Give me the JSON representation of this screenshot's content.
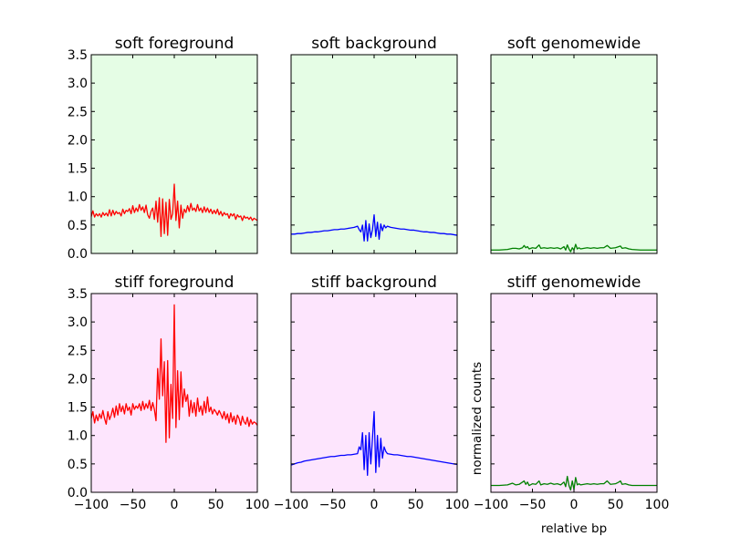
{
  "chart_data": [
    {
      "type": "line",
      "title": "soft foreground",
      "background": "#e5fde5",
      "color": "#ff0000",
      "xlim": [
        -100,
        100
      ],
      "ylim": [
        0,
        3.5
      ],
      "xticks": [
        -100,
        -50,
        0,
        50,
        100
      ],
      "yticks": [
        0.0,
        0.5,
        1.0,
        1.5,
        2.0,
        2.5,
        3.0,
        3.5
      ],
      "show_xticklabels": false,
      "show_yticklabels": true,
      "x": [
        -100,
        -98,
        -96,
        -94,
        -92,
        -90,
        -88,
        -86,
        -84,
        -82,
        -80,
        -78,
        -76,
        -74,
        -72,
        -70,
        -68,
        -66,
        -64,
        -62,
        -60,
        -58,
        -56,
        -54,
        -52,
        -50,
        -48,
        -46,
        -44,
        -42,
        -40,
        -38,
        -36,
        -34,
        -32,
        -30,
        -28,
        -26,
        -24,
        -22,
        -20,
        -18,
        -16,
        -14,
        -12,
        -10,
        -8,
        -6,
        -4,
        -2,
        0,
        2,
        4,
        6,
        8,
        10,
        12,
        14,
        16,
        18,
        20,
        22,
        24,
        26,
        28,
        30,
        32,
        34,
        36,
        38,
        40,
        42,
        44,
        46,
        48,
        50,
        52,
        54,
        56,
        58,
        60,
        62,
        64,
        66,
        68,
        70,
        72,
        74,
        76,
        78,
        80,
        82,
        84,
        86,
        88,
        90,
        92,
        94,
        96,
        98,
        100
      ],
      "values": [
        0.65,
        0.75,
        0.64,
        0.7,
        0.66,
        0.7,
        0.64,
        0.72,
        0.67,
        0.71,
        0.66,
        0.77,
        0.66,
        0.76,
        0.68,
        0.74,
        0.7,
        0.72,
        0.66,
        0.78,
        0.7,
        0.76,
        0.74,
        0.79,
        0.7,
        0.84,
        0.72,
        0.8,
        0.74,
        0.86,
        0.76,
        0.82,
        0.72,
        0.85,
        0.68,
        0.62,
        0.74,
        0.8,
        0.6,
        0.92,
        0.55,
        0.98,
        0.3,
        0.96,
        0.35,
        0.9,
        0.32,
        0.95,
        0.6,
        0.7,
        1.22,
        0.58,
        0.92,
        0.45,
        0.85,
        0.62,
        0.78,
        0.72,
        0.84,
        0.74,
        0.88,
        0.76,
        0.8,
        0.74,
        0.86,
        0.75,
        0.8,
        0.72,
        0.82,
        0.73,
        0.8,
        0.72,
        0.78,
        0.7,
        0.76,
        0.7,
        0.78,
        0.68,
        0.74,
        0.66,
        0.72,
        0.68,
        0.7,
        0.62,
        0.7,
        0.66,
        0.7,
        0.6,
        0.68,
        0.64,
        0.66,
        0.58,
        0.66,
        0.62,
        0.64,
        0.6,
        0.64,
        0.58,
        0.62,
        0.6,
        0.58
      ]
    },
    {
      "type": "line",
      "title": "soft background",
      "background": "#e5fde5",
      "color": "#0000ff",
      "xlim": [
        -100,
        100
      ],
      "ylim": [
        0,
        3.5
      ],
      "xticks": [
        -100,
        -50,
        0,
        50,
        100
      ],
      "yticks": [
        0.0,
        0.5,
        1.0,
        1.5,
        2.0,
        2.5,
        3.0,
        3.5
      ],
      "show_xticklabels": false,
      "show_yticklabels": false,
      "x": [
        -100,
        -96,
        -92,
        -88,
        -84,
        -80,
        -76,
        -72,
        -68,
        -64,
        -60,
        -56,
        -52,
        -48,
        -44,
        -40,
        -36,
        -32,
        -28,
        -24,
        -20,
        -18,
        -16,
        -14,
        -12,
        -10,
        -8,
        -6,
        -4,
        -2,
        0,
        2,
        4,
        6,
        8,
        10,
        12,
        14,
        16,
        20,
        24,
        28,
        32,
        36,
        40,
        44,
        48,
        52,
        56,
        60,
        64,
        68,
        72,
        76,
        80,
        84,
        88,
        92,
        96,
        100
      ],
      "values": [
        0.34,
        0.34,
        0.35,
        0.35,
        0.36,
        0.37,
        0.37,
        0.38,
        0.38,
        0.39,
        0.4,
        0.4,
        0.41,
        0.42,
        0.42,
        0.43,
        0.43,
        0.44,
        0.45,
        0.46,
        0.48,
        0.42,
        0.38,
        0.5,
        0.22,
        0.58,
        0.22,
        0.52,
        0.28,
        0.42,
        0.68,
        0.3,
        0.55,
        0.25,
        0.52,
        0.4,
        0.5,
        0.45,
        0.48,
        0.46,
        0.45,
        0.44,
        0.43,
        0.43,
        0.42,
        0.41,
        0.41,
        0.4,
        0.39,
        0.38,
        0.38,
        0.37,
        0.37,
        0.36,
        0.35,
        0.35,
        0.34,
        0.34,
        0.33,
        0.32
      ]
    },
    {
      "type": "line",
      "title": "soft genomewide",
      "background": "#e5fde5",
      "color": "#008000",
      "xlim": [
        -100,
        100
      ],
      "ylim": [
        0,
        3.5
      ],
      "xticks": [
        -100,
        -50,
        0,
        50,
        100
      ],
      "yticks": [
        0.0,
        0.5,
        1.0,
        1.5,
        2.0,
        2.5,
        3.0,
        3.5
      ],
      "show_xticklabels": false,
      "show_yticklabels": false,
      "x": [
        -100,
        -90,
        -80,
        -74,
        -70,
        -66,
        -62,
        -60,
        -58,
        -56,
        -54,
        -50,
        -46,
        -42,
        -40,
        -36,
        -32,
        -28,
        -24,
        -20,
        -16,
        -12,
        -10,
        -8,
        -6,
        -4,
        -2,
        0,
        2,
        4,
        6,
        8,
        12,
        16,
        20,
        24,
        28,
        32,
        36,
        40,
        44,
        50,
        54,
        56,
        58,
        62,
        66,
        70,
        80,
        90,
        100
      ],
      "values": [
        0.06,
        0.06,
        0.07,
        0.09,
        0.09,
        0.08,
        0.1,
        0.14,
        0.1,
        0.12,
        0.08,
        0.1,
        0.09,
        0.15,
        0.09,
        0.1,
        0.09,
        0.1,
        0.09,
        0.1,
        0.08,
        0.12,
        0.06,
        0.15,
        0.08,
        0.03,
        0.1,
        0.06,
        0.16,
        0.08,
        0.1,
        0.08,
        0.09,
        0.1,
        0.09,
        0.1,
        0.09,
        0.1,
        0.1,
        0.14,
        0.09,
        0.1,
        0.12,
        0.13,
        0.09,
        0.1,
        0.08,
        0.07,
        0.06,
        0.06,
        0.06
      ]
    },
    {
      "type": "line",
      "title": "stiff foreground",
      "background": "#fde5fd",
      "color": "#ff0000",
      "xlim": [
        -100,
        100
      ],
      "ylim": [
        0,
        3.5
      ],
      "xticks": [
        -100,
        -50,
        0,
        50,
        100
      ],
      "yticks": [
        0.0,
        0.5,
        1.0,
        1.5,
        2.0,
        2.5,
        3.0,
        3.5
      ],
      "show_xticklabels": true,
      "show_yticklabels": true,
      "x": [
        -100,
        -98,
        -96,
        -94,
        -92,
        -90,
        -88,
        -86,
        -84,
        -82,
        -80,
        -78,
        -76,
        -74,
        -72,
        -70,
        -68,
        -66,
        -64,
        -62,
        -60,
        -58,
        -56,
        -54,
        -52,
        -50,
        -48,
        -46,
        -44,
        -42,
        -40,
        -38,
        -36,
        -34,
        -32,
        -30,
        -28,
        -26,
        -24,
        -22,
        -20,
        -18,
        -16,
        -14,
        -12,
        -10,
        -8,
        -6,
        -4,
        -2,
        0,
        2,
        4,
        6,
        8,
        10,
        12,
        14,
        16,
        18,
        20,
        22,
        24,
        26,
        28,
        30,
        32,
        34,
        36,
        38,
        40,
        42,
        44,
        46,
        48,
        50,
        52,
        54,
        56,
        58,
        60,
        62,
        64,
        66,
        68,
        70,
        72,
        74,
        76,
        78,
        80,
        82,
        84,
        86,
        88,
        90,
        92,
        94,
        96,
        98,
        100
      ],
      "values": [
        1.3,
        1.42,
        1.22,
        1.36,
        1.26,
        1.38,
        1.3,
        1.44,
        1.3,
        1.2,
        1.42,
        1.28,
        1.36,
        1.48,
        1.32,
        1.52,
        1.36,
        1.56,
        1.42,
        1.52,
        1.38,
        1.56,
        1.44,
        1.5,
        1.36,
        1.56,
        1.46,
        1.52,
        1.48,
        1.56,
        1.44,
        1.6,
        1.46,
        1.56,
        1.48,
        1.62,
        1.44,
        1.58,
        1.46,
        1.26,
        2.18,
        1.64,
        2.7,
        1.7,
        2.3,
        0.88,
        2.32,
        0.96,
        1.9,
        1.3,
        3.3,
        1.14,
        2.14,
        1.28,
        2.12,
        1.5,
        1.82,
        1.6,
        1.72,
        1.34,
        1.62,
        1.4,
        1.58,
        1.34,
        1.66,
        1.42,
        1.52,
        1.36,
        1.6,
        1.4,
        1.68,
        1.42,
        1.5,
        1.38,
        1.46,
        1.42,
        1.36,
        1.44,
        1.38,
        1.3,
        1.42,
        1.28,
        1.38,
        1.22,
        1.4,
        1.24,
        1.34,
        1.2,
        1.36,
        1.3,
        1.18,
        1.34,
        1.24,
        1.2,
        1.32,
        1.16,
        1.28,
        1.2,
        1.24,
        1.22,
        1.18
      ]
    },
    {
      "type": "line",
      "title": "stiff background",
      "background": "#fde5fd",
      "color": "#0000ff",
      "xlim": [
        -100,
        100
      ],
      "ylim": [
        0,
        3.5
      ],
      "xticks": [
        -100,
        -50,
        0,
        50,
        100
      ],
      "yticks": [
        0.0,
        0.5,
        1.0,
        1.5,
        2.0,
        2.5,
        3.0,
        3.5
      ],
      "show_xticklabels": true,
      "show_yticklabels": false,
      "x": [
        -100,
        -96,
        -92,
        -88,
        -84,
        -80,
        -76,
        -72,
        -68,
        -64,
        -60,
        -56,
        -52,
        -48,
        -44,
        -40,
        -36,
        -32,
        -28,
        -24,
        -20,
        -18,
        -16,
        -14,
        -12,
        -10,
        -8,
        -6,
        -4,
        -2,
        0,
        2,
        4,
        6,
        8,
        10,
        12,
        14,
        16,
        20,
        24,
        28,
        32,
        36,
        40,
        44,
        48,
        52,
        56,
        60,
        64,
        68,
        72,
        76,
        80,
        84,
        88,
        92,
        96,
        100
      ],
      "values": [
        0.48,
        0.5,
        0.52,
        0.53,
        0.55,
        0.56,
        0.57,
        0.58,
        0.59,
        0.6,
        0.61,
        0.62,
        0.63,
        0.63,
        0.64,
        0.65,
        0.65,
        0.66,
        0.66,
        0.67,
        0.68,
        0.8,
        0.75,
        1.05,
        0.4,
        1.0,
        0.3,
        1.05,
        0.5,
        0.95,
        1.42,
        0.35,
        1.0,
        0.45,
        0.95,
        0.6,
        0.8,
        0.72,
        0.68,
        0.67,
        0.66,
        0.66,
        0.65,
        0.64,
        0.63,
        0.63,
        0.62,
        0.61,
        0.6,
        0.59,
        0.58,
        0.57,
        0.56,
        0.55,
        0.54,
        0.53,
        0.52,
        0.51,
        0.5,
        0.49
      ]
    },
    {
      "type": "line",
      "title": "stiff genomewide",
      "background": "#fde5fd",
      "color": "#008000",
      "xlim": [
        -100,
        100
      ],
      "ylim": [
        0,
        3.5
      ],
      "xticks": [
        -100,
        -50,
        0,
        50,
        100
      ],
      "yticks": [
        0.0,
        0.5,
        1.0,
        1.5,
        2.0,
        2.5,
        3.0,
        3.5
      ],
      "show_xticklabels": true,
      "show_yticklabels": false,
      "xlabel": "relative bp",
      "ylabel": "normalized counts",
      "x": [
        -100,
        -90,
        -80,
        -74,
        -70,
        -66,
        -62,
        -60,
        -58,
        -56,
        -54,
        -50,
        -46,
        -42,
        -40,
        -36,
        -32,
        -28,
        -24,
        -20,
        -16,
        -12,
        -10,
        -8,
        -6,
        -4,
        -2,
        0,
        2,
        4,
        6,
        8,
        12,
        16,
        20,
        24,
        28,
        32,
        36,
        40,
        44,
        50,
        54,
        56,
        58,
        62,
        66,
        70,
        80,
        90,
        100
      ],
      "values": [
        0.12,
        0.12,
        0.13,
        0.16,
        0.13,
        0.14,
        0.18,
        0.2,
        0.14,
        0.18,
        0.12,
        0.15,
        0.14,
        0.2,
        0.13,
        0.15,
        0.14,
        0.16,
        0.14,
        0.15,
        0.13,
        0.18,
        0.1,
        0.28,
        0.12,
        0.04,
        0.2,
        0.05,
        0.26,
        0.13,
        0.15,
        0.13,
        0.14,
        0.15,
        0.14,
        0.15,
        0.14,
        0.15,
        0.15,
        0.2,
        0.14,
        0.15,
        0.18,
        0.2,
        0.14,
        0.15,
        0.13,
        0.12,
        0.12,
        0.12,
        0.12
      ]
    }
  ]
}
